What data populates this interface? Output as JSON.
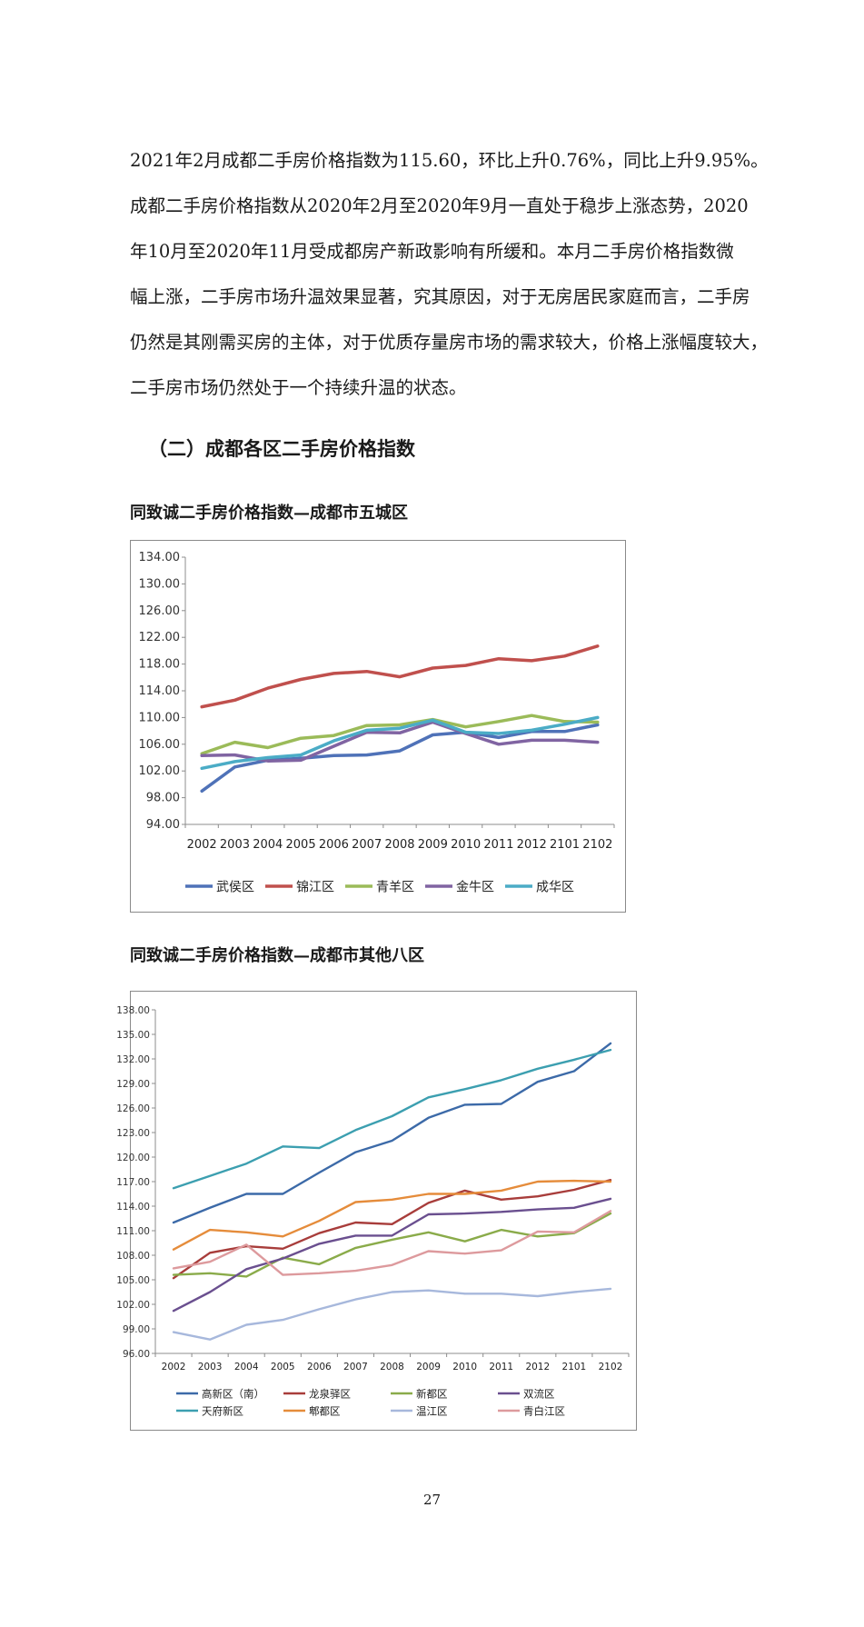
{
  "paragraph": {
    "lines": [
      "2021年2月成都二手房价格指数为115.60，环比上升0.76%，同比上升9.95%。",
      "成都二手房价格指数从2020年2月至2020年9月一直处于稳步上涨态势，2020",
      "年10月至2020年11月受成都房产新政影响有所缓和。本月二手房价格指数微",
      "幅上涨，二手房市场升温效果显著，究其原因，对于无房居民家庭而言，二手房",
      "仍然是其刚需买房的主体，对于优质存量房市场的需求较大，价格上涨幅度较大，",
      "二手房市场仍然处于一个持续升温的状态。"
    ]
  },
  "section_title": "（二）成都各区二手房价格指数",
  "figure1_title": "同致诚二手房价格指数—成都市五城区",
  "figure2_title": "同致诚二手房价格指数—成都市其他八区",
  "page_number": "27",
  "chart_data": [
    {
      "type": "line",
      "title": "",
      "x": [
        "2002",
        "2003",
        "2004",
        "2005",
        "2006",
        "2007",
        "2008",
        "2009",
        "2010",
        "2011",
        "2012",
        "2101",
        "2102"
      ],
      "ylim": [
        94,
        134
      ],
      "yticks": [
        "94.00",
        "98.00",
        "102.00",
        "106.00",
        "110.00",
        "114.00",
        "118.00",
        "122.00",
        "126.00",
        "130.00",
        "134.00"
      ],
      "grid": false,
      "legend": "bottom",
      "series": [
        {
          "name": "武侯区",
          "color": "#4f72b8",
          "values": [
            99.0,
            102.6,
            103.6,
            103.9,
            104.3,
            104.4,
            105.0,
            107.4,
            107.8,
            107.0,
            107.9,
            107.9,
            108.9
          ]
        },
        {
          "name": "锦江区",
          "color": "#c0504d",
          "values": [
            111.6,
            112.6,
            114.4,
            115.7,
            116.6,
            116.9,
            116.1,
            117.4,
            117.8,
            118.8,
            118.5,
            119.2,
            120.7
          ]
        },
        {
          "name": "青羊区",
          "color": "#9bbb59",
          "values": [
            104.6,
            106.3,
            105.5,
            106.9,
            107.3,
            108.8,
            108.9,
            109.7,
            108.6,
            109.4,
            110.3,
            109.4,
            109.3
          ]
        },
        {
          "name": "金牛区",
          "color": "#8064a2",
          "values": [
            104.3,
            104.4,
            103.5,
            103.6,
            105.7,
            107.8,
            107.7,
            109.3,
            107.6,
            106.0,
            106.6,
            106.6,
            106.3
          ]
        },
        {
          "name": "成华区",
          "color": "#4bacc6",
          "values": [
            102.4,
            103.4,
            104.0,
            104.4,
            106.5,
            108.1,
            108.4,
            109.6,
            107.8,
            107.6,
            108.1,
            109.0,
            110.0
          ]
        }
      ]
    },
    {
      "type": "line",
      "title": "",
      "x": [
        "2002",
        "2003",
        "2004",
        "2005",
        "2006",
        "2007",
        "2008",
        "2009",
        "2010",
        "2011",
        "2012",
        "2101",
        "2102"
      ],
      "ylim": [
        96,
        138
      ],
      "yticks": [
        "96.00",
        "99.00",
        "102.00",
        "105.00",
        "108.00",
        "111.00",
        "114.00",
        "117.00",
        "120.00",
        "123.00",
        "126.00",
        "129.00",
        "132.00",
        "135.00",
        "138.00"
      ],
      "grid": false,
      "legend": "bottom",
      "series": [
        {
          "name": "高新区（南）",
          "color": "#3c6aa8",
          "values": [
            112.0,
            113.8,
            115.5,
            115.5,
            118.1,
            120.6,
            122.0,
            124.8,
            126.4,
            126.5,
            129.2,
            130.5,
            133.9
          ]
        },
        {
          "name": "龙泉驿区",
          "color": "#a83d3b",
          "values": [
            105.2,
            108.3,
            109.1,
            108.8,
            110.7,
            112.0,
            111.8,
            114.4,
            115.9,
            114.8,
            115.2,
            116.0,
            117.2
          ]
        },
        {
          "name": "新都区",
          "color": "#8aab4a",
          "values": [
            105.6,
            105.8,
            105.4,
            107.7,
            106.9,
            108.9,
            109.9,
            110.8,
            109.7,
            111.1,
            110.3,
            110.7,
            113.1
          ]
        },
        {
          "name": "双流区",
          "color": "#6a4f8f",
          "values": [
            101.2,
            103.5,
            106.3,
            107.6,
            109.4,
            110.4,
            110.4,
            113.0,
            113.1,
            113.3,
            113.6,
            113.8,
            114.9
          ]
        },
        {
          "name": "天府新区",
          "color": "#3c9fb0",
          "values": [
            116.2,
            117.7,
            119.2,
            121.3,
            121.1,
            123.3,
            125.0,
            127.3,
            128.3,
            129.4,
            130.8,
            131.9,
            133.1
          ]
        },
        {
          "name": "郫都区",
          "color": "#e58c3b",
          "values": [
            108.7,
            111.1,
            110.8,
            110.3,
            112.2,
            114.5,
            114.8,
            115.5,
            115.5,
            115.9,
            117.0,
            117.1,
            117.0
          ]
        },
        {
          "name": "温江区",
          "color": "#a7b8dc",
          "values": [
            98.6,
            97.7,
            99.5,
            100.1,
            101.4,
            102.6,
            103.5,
            103.7,
            103.3,
            103.3,
            103.0,
            103.5,
            103.9
          ]
        },
        {
          "name": "青白江区",
          "color": "#dd9a9d",
          "values": [
            106.4,
            107.2,
            109.3,
            105.6,
            105.8,
            106.1,
            106.8,
            108.5,
            108.2,
            108.6,
            110.9,
            110.8,
            113.4
          ]
        }
      ]
    }
  ]
}
